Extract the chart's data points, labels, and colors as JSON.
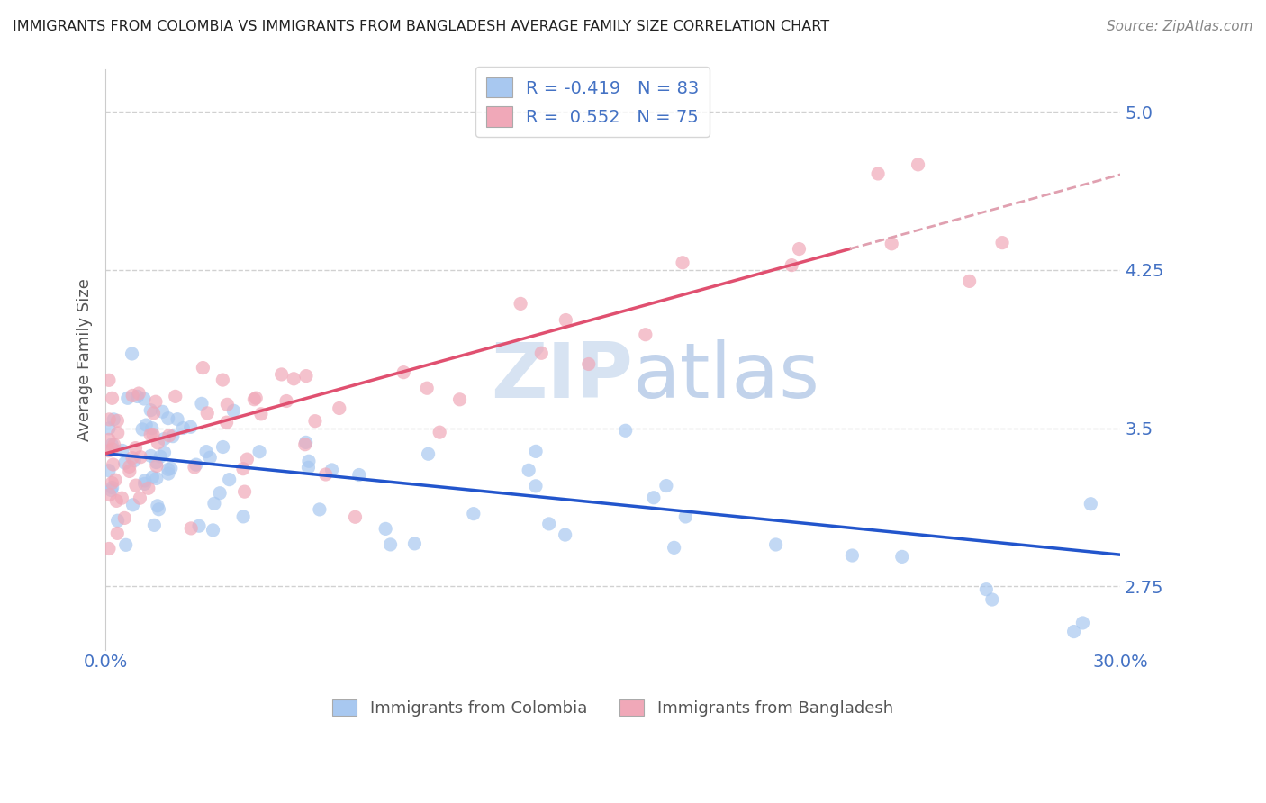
{
  "title": "IMMIGRANTS FROM COLOMBIA VS IMMIGRANTS FROM BANGLADESH AVERAGE FAMILY SIZE CORRELATION CHART",
  "source": "Source: ZipAtlas.com",
  "ylabel": "Average Family Size",
  "xlim": [
    0.0,
    0.3
  ],
  "ylim": [
    2.45,
    5.2
  ],
  "yticks": [
    2.75,
    3.5,
    4.25,
    5.0
  ],
  "xticks": [
    0.0,
    0.05,
    0.1,
    0.15,
    0.2,
    0.25,
    0.3
  ],
  "xtick_labels": [
    "0.0%",
    "",
    "",
    "",
    "",
    "",
    "30.0%"
  ],
  "colombia_color": "#a8c8f0",
  "bangladesh_color": "#f0a8b8",
  "colombia_line_color": "#2255cc",
  "bangladesh_line_color": "#e05070",
  "legend_R_colombia": "-0.419",
  "legend_N_colombia": "83",
  "legend_R_bangladesh": "0.552",
  "legend_N_bangladesh": "75",
  "colombia_label": "Immigrants from Colombia",
  "bangladesh_label": "Immigrants from Bangladesh",
  "background_color": "#ffffff",
  "grid_color": "#cccccc",
  "axis_color": "#4472c4",
  "text_color": "#4472c4",
  "title_color": "#222222",
  "watermark_color": "#d0dff0",
  "dashed_line_color": "#e0a0b0"
}
